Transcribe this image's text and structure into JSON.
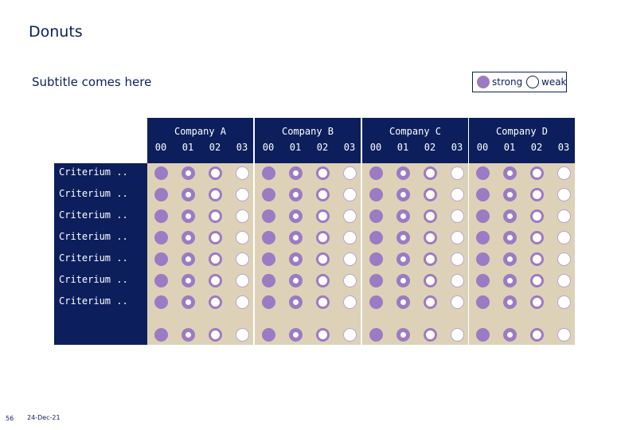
{
  "title": "Donuts",
  "subtitle": "Subtitle comes here",
  "legend": {
    "strong": "strong",
    "weak": "weak"
  },
  "criteria": [
    "Criterium ..",
    "Criterium ..",
    "Criterium ..",
    "Criterium ..",
    "Criterium ..",
    "Criterium ..",
    "Criterium ..",
    ""
  ],
  "companies": [
    {
      "name": "Company A",
      "columns": [
        "00",
        "01",
        "02",
        "03"
      ]
    },
    {
      "name": "Company B",
      "columns": [
        "00",
        "01",
        "02",
        "03"
      ]
    },
    {
      "name": "Company C",
      "columns": [
        "00",
        "01",
        "02",
        "03"
      ]
    },
    {
      "name": "Company D",
      "columns": [
        "00",
        "01",
        "02",
        "03"
      ]
    }
  ],
  "column_fill_levels": [
    "full",
    "ring3",
    "ring2",
    "empty"
  ],
  "footer": {
    "page_number": "56",
    "date": "24-Dec-21"
  },
  "colors": {
    "navy": "#0c1f5c",
    "beige": "#ddd2b7",
    "purple": "#9b7bc4"
  }
}
